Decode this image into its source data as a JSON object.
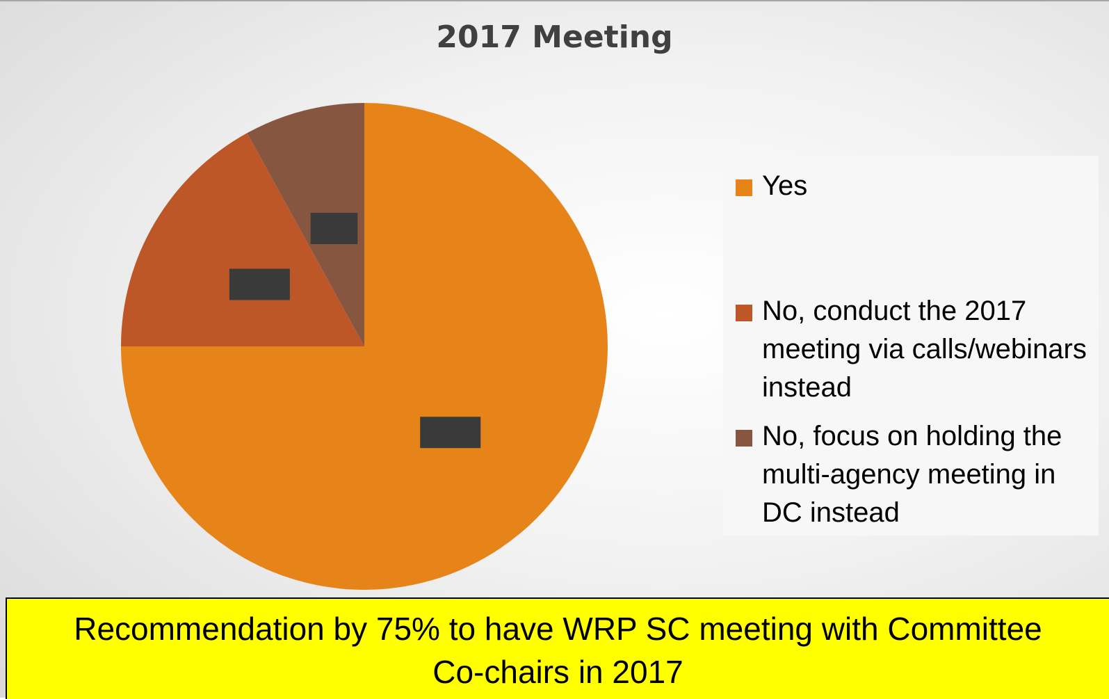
{
  "chart_data": {
    "type": "pie",
    "title": "2017 Meeting",
    "categories": [
      "Yes",
      "No, conduct the 2017 meeting via calls/webinars instead",
      "No, focus on holding the multi-agency meeting in DC instead"
    ],
    "values": [
      75,
      17,
      8
    ],
    "value_labels": [
      "75%",
      "17%",
      "8%"
    ],
    "colors": [
      "#e6841a",
      "#bd5728",
      "#875641"
    ],
    "legend": "right",
    "annotation": "Recommendation by 75% to have WRP SC meeting with Committee Co-chairs in 2017"
  }
}
